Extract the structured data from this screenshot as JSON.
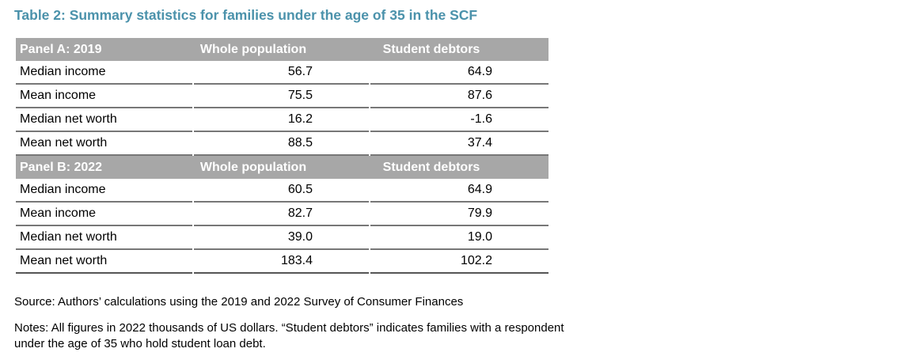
{
  "colors": {
    "title_text": "#4b92ab",
    "panel_header_bg": "#a7a7a7",
    "panel_header_text": "#ffffff",
    "row_border": "#777777"
  },
  "chart_data": {
    "type": "table",
    "title": "Table 2: Summary statistics for families under the age of 35 in the SCF",
    "panels": [
      {
        "header": "Panel A: 2019",
        "columns": [
          "Whole population",
          "Student debtors"
        ],
        "rows": [
          {
            "label": "Median income",
            "values": [
              "56.7",
              "64.9"
            ]
          },
          {
            "label": "Mean income",
            "values": [
              "75.5",
              "87.6"
            ]
          },
          {
            "label": "Median net worth",
            "values": [
              "16.2",
              "-1.6"
            ]
          },
          {
            "label": "Mean net worth",
            "values": [
              "88.5",
              "37.4"
            ]
          }
        ]
      },
      {
        "header": "Panel B: 2022",
        "columns": [
          "Whole population",
          "Student debtors"
        ],
        "rows": [
          {
            "label": "Median income",
            "values": [
              "60.5",
              "64.9"
            ]
          },
          {
            "label": "Mean income",
            "values": [
              "82.7",
              "79.9"
            ]
          },
          {
            "label": "Median net worth",
            "values": [
              "39.0",
              "19.0"
            ]
          },
          {
            "label": "Mean net worth",
            "values": [
              "183.4",
              "102.2"
            ]
          }
        ]
      }
    ],
    "source": "Source: Authors’ calculations using the 2019 and 2022 Survey of Consumer Finances",
    "notes": "Notes: All figures in 2022 thousands of US dollars. “Student debtors” indicates families with a respondent under the age of 35 who hold student loan debt."
  }
}
